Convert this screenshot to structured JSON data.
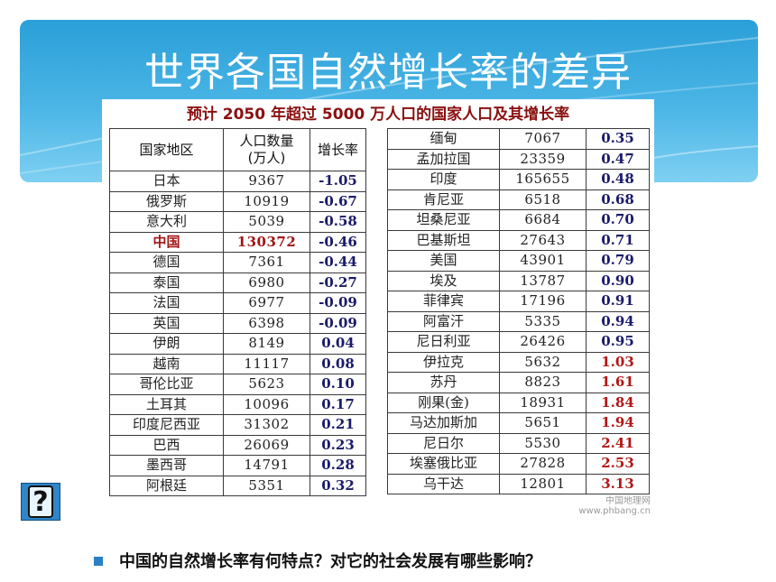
{
  "slide": {
    "title": "世界各国自然增长率的差异",
    "question": "中国的自然增长率有何特点？对它的社会发展有哪些影响？",
    "help_icon": "question-mark-icon",
    "help_glyph": "?"
  },
  "table": {
    "caption": "预计 2050 年超过 5000 万人口的国家人口及其增长率",
    "headers": {
      "country": "国家地区",
      "population": "人口数量",
      "population_unit": "(万人)",
      "rate": "增长率"
    },
    "left_rows": [
      [
        "日本",
        "9367",
        "-1.05"
      ],
      [
        "俄罗斯",
        "10919",
        "-0.67"
      ],
      [
        "意大利",
        "5039",
        "-0.58"
      ],
      [
        "中国",
        "130372",
        "-0.46"
      ],
      [
        "德国",
        "7361",
        "-0.44"
      ],
      [
        "泰国",
        "6980",
        "-0.27"
      ],
      [
        "法国",
        "6977",
        "-0.09"
      ],
      [
        "英国",
        "6398",
        "-0.09"
      ],
      [
        "伊朗",
        "8149",
        "0.04"
      ],
      [
        "越南",
        "11117",
        "0.08"
      ],
      [
        "哥伦比亚",
        "5623",
        "0.10"
      ],
      [
        "土耳其",
        "10096",
        "0.17"
      ],
      [
        "印度尼西亚",
        "31302",
        "0.21"
      ],
      [
        "巴西",
        "26069",
        "0.23"
      ],
      [
        "墨西哥",
        "14791",
        "0.28"
      ],
      [
        "阿根廷",
        "5351",
        "0.32"
      ]
    ],
    "right_rows": [
      [
        "缅甸",
        "7067",
        "0.35"
      ],
      [
        "孟加拉国",
        "23359",
        "0.47"
      ],
      [
        "印度",
        "165655",
        "0.48"
      ],
      [
        "肯尼亚",
        "6518",
        "0.68"
      ],
      [
        "坦桑尼亚",
        "6684",
        "0.70"
      ],
      [
        "巴基斯坦",
        "27643",
        "0.71"
      ],
      [
        "美国",
        "43901",
        "0.79"
      ],
      [
        "埃及",
        "13787",
        "0.90"
      ],
      [
        "菲律宾",
        "17196",
        "0.91"
      ],
      [
        "阿富汗",
        "5335",
        "0.94"
      ],
      [
        "尼日利亚",
        "26426",
        "0.95"
      ],
      [
        "伊拉克",
        "5632",
        "1.03"
      ],
      [
        "苏丹",
        "8823",
        "1.61"
      ],
      [
        "刚果(金)",
        "18931",
        "1.84"
      ],
      [
        "马达加斯加",
        "5651",
        "1.94"
      ],
      [
        "尼日尔",
        "5530",
        "2.41"
      ],
      [
        "埃塞俄比亚",
        "27828",
        "2.53"
      ],
      [
        "乌干达",
        "12801",
        "3.13"
      ]
    ],
    "highlight_country": "中国",
    "watermark": "中国地理网",
    "watermark_url": "www.phbang.cn"
  },
  "colors": {
    "header_blue": "#2a9fd8",
    "highlight_red": "#a01515",
    "high_rate_red": "#b01818",
    "rate_blue": "#1a1a6a",
    "bullet_blue": "#2a7fc4"
  }
}
